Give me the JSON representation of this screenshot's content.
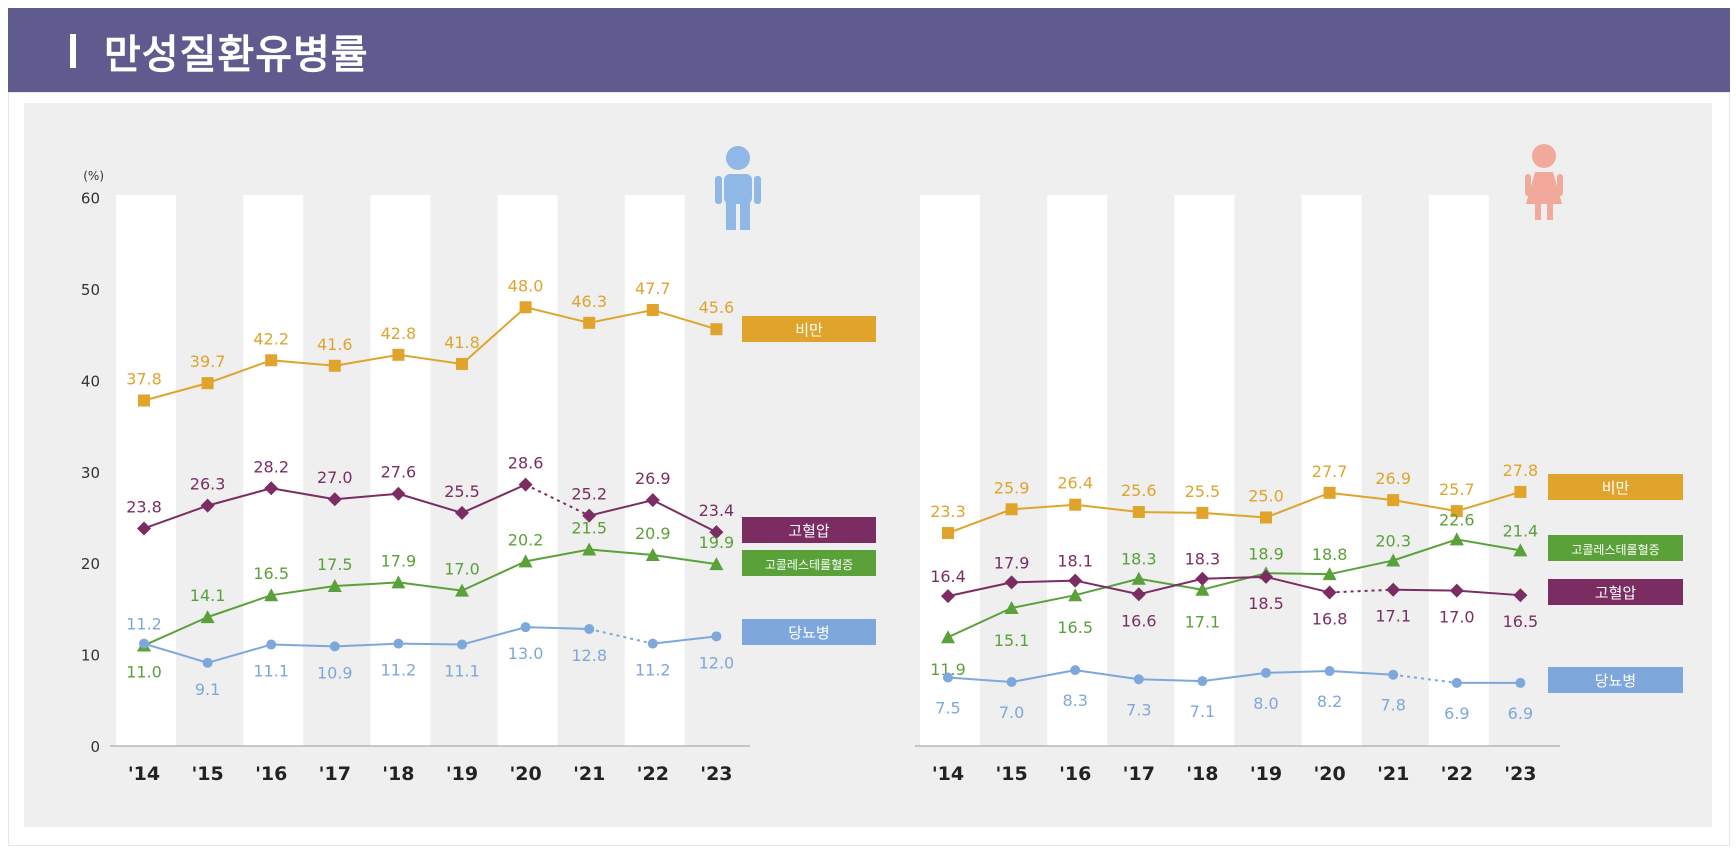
{
  "header": {
    "title": "만성질환유병률"
  },
  "unit_label": "(%)",
  "colors": {
    "header": "#5f5b8e",
    "obesity": "#e0a42c",
    "hypertension": "#7b2d63",
    "hypercholesterolemia": "#5aa13a",
    "diabetes": "#7ea7dc",
    "male_icon": "#8fb8e6",
    "female_icon": "#f0a99a"
  },
  "icons": {
    "male": "male-person-icon",
    "female": "female-person-icon"
  },
  "chart_data": [
    {
      "type": "line",
      "panel": "male",
      "categories": [
        "'14",
        "'15",
        "'16",
        "'17",
        "'18",
        "'19",
        "'20",
        "'21",
        "'22",
        "'23"
      ],
      "ylim": [
        0,
        60
      ],
      "yticks": [
        "0",
        "10",
        "20",
        "30",
        "40",
        "50",
        "60"
      ],
      "series": [
        {
          "name": "비만",
          "key": "obesity",
          "marker": "square",
          "values": [
            37.8,
            39.7,
            42.2,
            41.6,
            42.8,
            41.8,
            48.0,
            46.3,
            47.7,
            45.6
          ],
          "labels": [
            "37.8",
            "39.7",
            "42.2",
            "41.6",
            "42.8",
            "41.8",
            "48.0",
            "46.3",
            "47.7",
            "45.6"
          ]
        },
        {
          "name": "고혈압",
          "key": "hypertension",
          "marker": "diamond",
          "values": [
            23.8,
            26.3,
            28.2,
            27.0,
            27.6,
            25.5,
            28.6,
            25.2,
            26.9,
            23.4
          ],
          "labels": [
            "23.8",
            "26.3",
            "28.2",
            "27.0",
            "27.6",
            "25.5",
            "28.6",
            "25.2",
            "26.9",
            "23.4"
          ]
        },
        {
          "name": "고콜레스테롤혈증",
          "key": "hypercholesterolemia",
          "marker": "triangle",
          "values": [
            11.0,
            14.1,
            16.5,
            17.5,
            17.9,
            17.0,
            20.2,
            21.5,
            20.9,
            19.9
          ],
          "labels": [
            "11.0",
            "14.1",
            "16.5",
            "17.5",
            "17.9",
            "17.0",
            "20.2",
            "21.5",
            "20.9",
            "19.9"
          ]
        },
        {
          "name": "당뇨병",
          "key": "diabetes",
          "marker": "circle",
          "values": [
            11.2,
            9.1,
            11.1,
            10.9,
            11.2,
            11.1,
            13.0,
            12.8,
            11.2,
            12.0
          ],
          "labels": [
            "11.2",
            "9.1",
            "11.1",
            "10.9",
            "11.2",
            "11.1",
            "13.0",
            "12.8",
            "11.2",
            "12.0"
          ]
        }
      ]
    },
    {
      "type": "line",
      "panel": "female",
      "categories": [
        "'14",
        "'15",
        "'16",
        "'17",
        "'18",
        "'19",
        "'20",
        "'21",
        "'22",
        "'23"
      ],
      "ylim": [
        0,
        60
      ],
      "series": [
        {
          "name": "비만",
          "key": "obesity",
          "marker": "square",
          "values": [
            23.3,
            25.9,
            26.4,
            25.6,
            25.5,
            25.0,
            27.7,
            26.9,
            25.7,
            27.8
          ],
          "labels": [
            "23.3",
            "25.9",
            "26.4",
            "25.6",
            "25.5",
            "25.0",
            "27.7",
            "26.9",
            "25.7",
            "27.8"
          ]
        },
        {
          "name": "고콜레스테롤혈증",
          "key": "hypercholesterolemia",
          "marker": "triangle",
          "values": [
            11.9,
            15.1,
            16.5,
            18.3,
            17.1,
            18.9,
            18.8,
            20.3,
            22.6,
            21.4
          ],
          "labels": [
            "11.9",
            "15.1",
            "16.5",
            "18.3",
            "17.1",
            "18.9",
            "18.8",
            "20.3",
            "22.6",
            "21.4"
          ]
        },
        {
          "name": "고혈압",
          "key": "hypertension",
          "marker": "diamond",
          "values": [
            16.4,
            17.9,
            18.1,
            16.6,
            18.3,
            18.5,
            16.8,
            17.1,
            17.0,
            16.5
          ],
          "labels": [
            "16.4",
            "17.9",
            "18.1",
            "16.6",
            "18.3",
            "18.5",
            "16.8",
            "17.1",
            "17.0",
            "16.5"
          ]
        },
        {
          "name": "당뇨병",
          "key": "diabetes",
          "marker": "circle",
          "values": [
            7.5,
            7.0,
            8.3,
            7.3,
            7.1,
            8.0,
            8.2,
            7.8,
            6.9,
            6.9
          ],
          "labels": [
            "7.5",
            "7.0",
            "8.3",
            "7.3",
            "7.1",
            "8.0",
            "8.2",
            "7.8",
            "6.9",
            "6.9"
          ]
        }
      ]
    }
  ]
}
